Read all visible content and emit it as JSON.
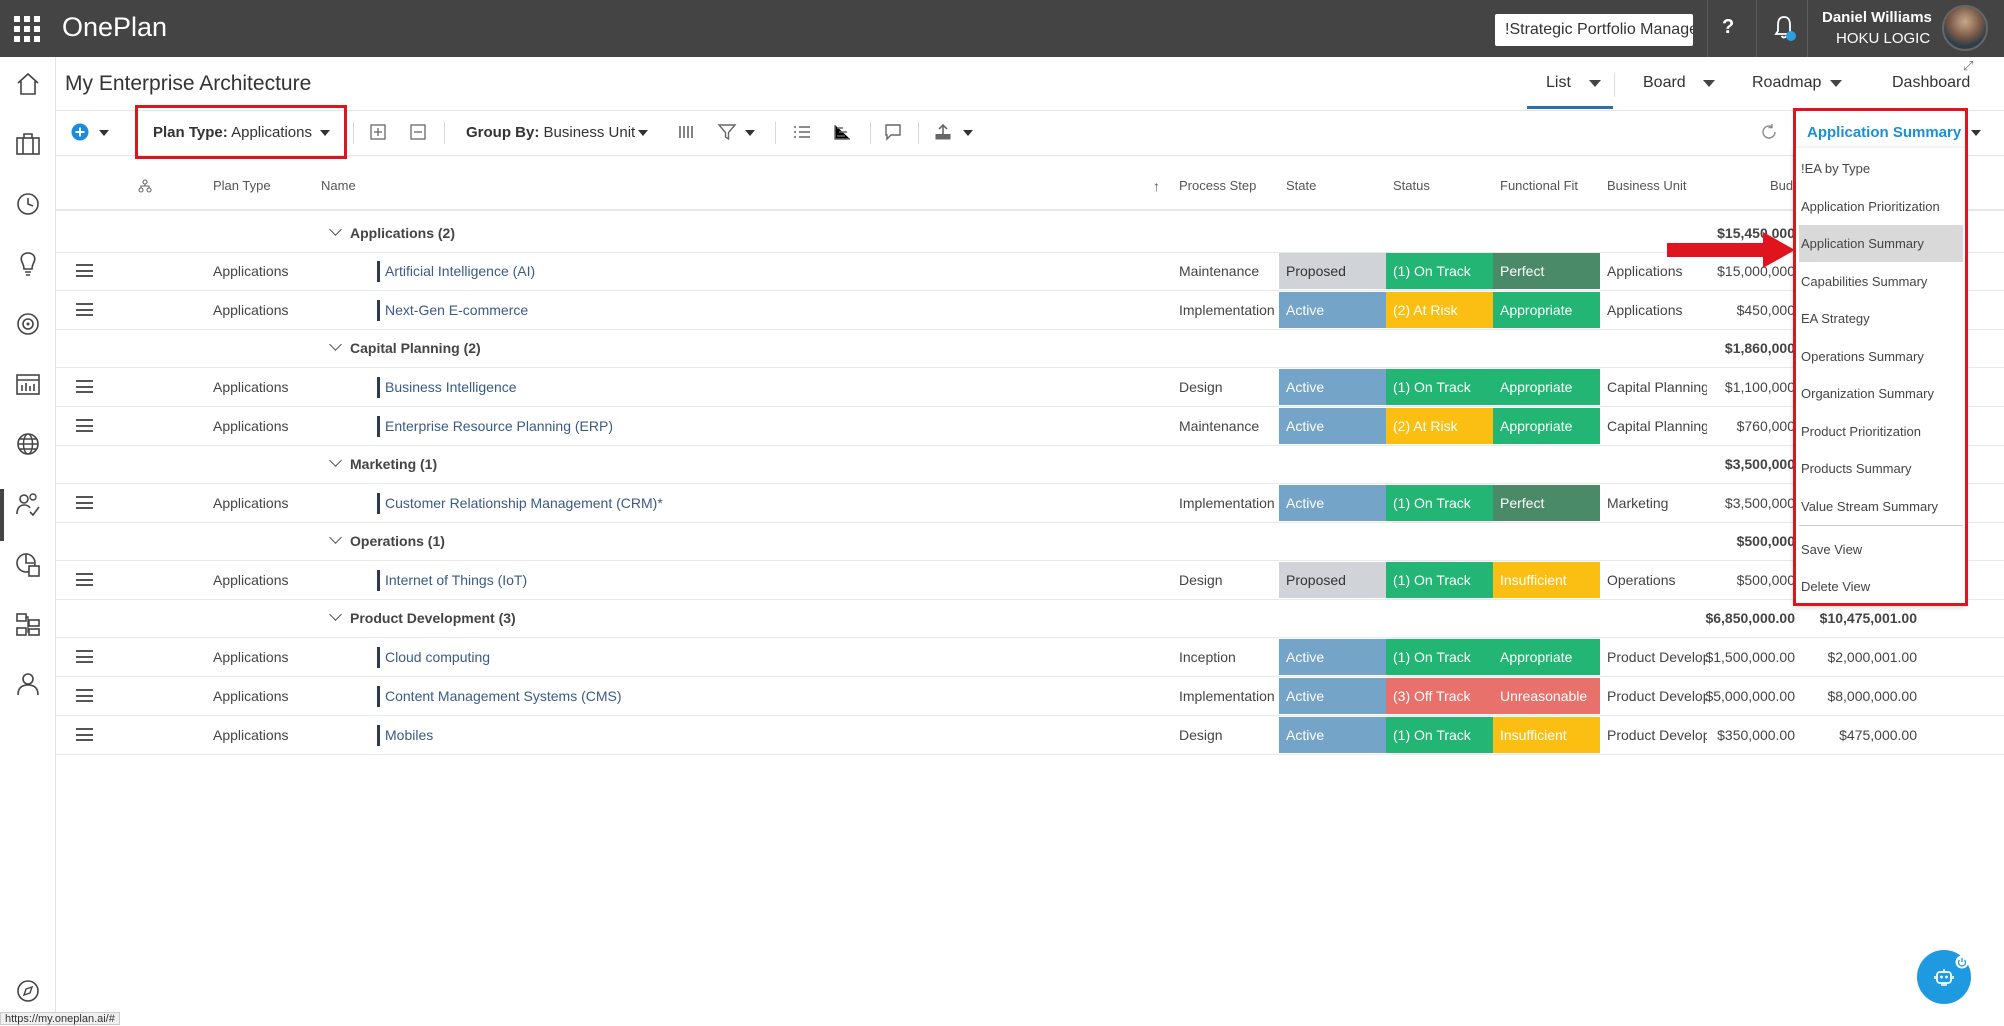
{
  "app": {
    "name": "OnePlan"
  },
  "topbar": {
    "plan_selector": "!Strategic Portfolio Manager",
    "help_label": "?",
    "user_name": "Daniel Williams",
    "user_org": "HOKU LOGIC"
  },
  "page": {
    "title": "My Enterprise Architecture"
  },
  "view_tabs": {
    "list": "List",
    "board": "Board",
    "roadmap": "Roadmap",
    "dashboard": "Dashboard"
  },
  "toolbar": {
    "plan_type_label": "Plan Type:",
    "plan_type_value": "Applications",
    "group_by_label": "Group By:",
    "group_by_value": "Business Unit",
    "view_selected": "Application Summary"
  },
  "columns": {
    "plan_type": "Plan Type",
    "name": "Name",
    "process_step": "Process Step",
    "state": "State",
    "status": "Status",
    "functional_fit": "Functional Fit",
    "business_unit": "Business Unit",
    "budget": "Budg"
  },
  "groups": [
    {
      "title": "Applications (2)",
      "budget": "$15,450,000",
      "budget2": ""
    },
    {
      "title": "Capital Planning (2)",
      "budget": "$1,860,000",
      "budget2": ""
    },
    {
      "title": "Marketing (1)",
      "budget": "$3,500,000",
      "budget2": ""
    },
    {
      "title": "Operations (1)",
      "budget": "$500,000",
      "budget2": ""
    },
    {
      "title": "Product Development (3)",
      "budget": "$6,850,000.00",
      "budget2": "$10,475,001.00"
    }
  ],
  "rows": [
    {
      "plan_type": "Applications",
      "name": "Artificial Intelligence (AI)",
      "process_step": "Maintenance",
      "state": "Proposed",
      "status": "(1) On Track",
      "fit": "Perfect",
      "unit": "Applications",
      "budget": "$15,000,000",
      "budget2": ""
    },
    {
      "plan_type": "Applications",
      "name": "Next-Gen E-commerce",
      "process_step": "Implementation",
      "state": "Active",
      "status": "(2) At Risk",
      "fit": "Appropriate",
      "unit": "Applications",
      "budget": "$450,000",
      "budget2": ""
    },
    {
      "plan_type": "Applications",
      "name": "Business Intelligence",
      "process_step": "Design",
      "state": "Active",
      "status": "(1) On Track",
      "fit": "Appropriate",
      "unit": "Capital Planning",
      "budget": "$1,100,000",
      "budget2": ""
    },
    {
      "plan_type": "Applications",
      "name": "Enterprise Resource Planning (ERP)",
      "process_step": "Maintenance",
      "state": "Active",
      "status": "(2) At Risk",
      "fit": "Appropriate",
      "unit": "Capital Planning",
      "budget": "$760,000",
      "budget2": ""
    },
    {
      "plan_type": "Applications",
      "name": "Customer Relationship Management (CRM)*",
      "process_step": "Implementation",
      "state": "Active",
      "status": "(1) On Track",
      "fit": "Perfect",
      "unit": "Marketing",
      "budget": "$3,500,000",
      "budget2": ""
    },
    {
      "plan_type": "Applications",
      "name": "Internet of Things (IoT)",
      "process_step": "Design",
      "state": "Proposed",
      "status": "(1) On Track",
      "fit": "Insufficient",
      "unit": "Operations",
      "budget": "$500,000",
      "budget2": ""
    },
    {
      "plan_type": "Applications",
      "name": "Cloud computing",
      "process_step": "Inception",
      "state": "Active",
      "status": "(1) On Track",
      "fit": "Appropriate",
      "unit": "Product Develop",
      "budget": "$1,500,000.00",
      "budget2": "$2,000,001.00"
    },
    {
      "plan_type": "Applications",
      "name": "Content Management Systems (CMS)",
      "process_step": "Implementation",
      "state": "Active",
      "status": "(3) Off Track",
      "fit": "Unreasonable",
      "unit": "Product Develop",
      "budget": "$5,000,000.00",
      "budget2": "$8,000,000.00"
    },
    {
      "plan_type": "Applications",
      "name": "Mobiles",
      "process_step": "Design",
      "state": "Active",
      "status": "(1) On Track",
      "fit": "Insufficient",
      "unit": "Product Develop",
      "budget": "$350,000.00",
      "budget2": "$475,000.00"
    }
  ],
  "views_menu": {
    "items": [
      "!EA by Type",
      "Application Prioritization",
      "Application Summary",
      "Capabilities Summary",
      "EA Strategy",
      "Operations Summary",
      "Organization Summary",
      "Product Prioritization",
      "Products Summary",
      "Value Stream Summary"
    ],
    "highlighted": "Application Summary",
    "save": "Save View",
    "delete": "Delete View"
  },
  "colors": {
    "proposed": "#d0d3d8",
    "active": "#74a4c7",
    "on_track": "#22b573",
    "at_risk": "#fbbf13",
    "off_track": "#e8716c",
    "perfect": "#4a8a68",
    "appropriate": "#22b573",
    "insufficient": "#fbbf13",
    "unreasonable": "#e8716c",
    "accent": "#1a90d8",
    "annotation": "#e0141e"
  },
  "statusbar": {
    "url": "https://my.oneplan.ai/#"
  }
}
